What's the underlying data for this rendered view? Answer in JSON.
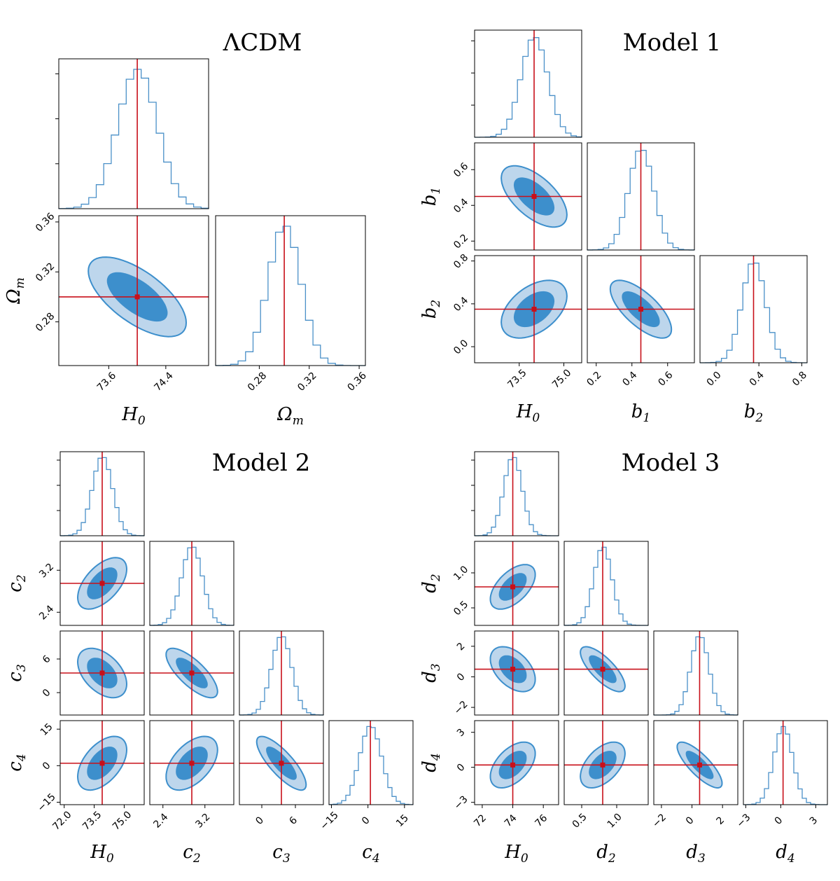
{
  "chart_data": [
    {
      "type": "corner",
      "title": "ΛCDM",
      "params": [
        {
          "label": "H",
          "sub": "0",
          "truth": 74.0,
          "range": [
            72.9,
            75.0
          ],
          "ticks": [
            73.6,
            74.4
          ],
          "tick_labels": [
            "73.6",
            "74.4"
          ],
          "sd": 0.28
        },
        {
          "label": "Ω",
          "sub": "m",
          "truth": 0.3,
          "range": [
            0.245,
            0.365
          ],
          "ticks": [
            0.28,
            0.32,
            0.36
          ],
          "tick_labels": [
            "0.28",
            "0.32",
            "0.36"
          ],
          "sd": 0.013
        }
      ],
      "correlations": [
        [
          1,
          -0.65
        ],
        [
          -0.65,
          1
        ]
      ],
      "contour_color": "#3d8fcc",
      "truth_color": "#c8101a"
    },
    {
      "type": "corner",
      "title": "Model 1",
      "params": [
        {
          "label": "H",
          "sub": "0",
          "truth": 74.0,
          "range": [
            72.0,
            75.6
          ],
          "ticks": [
            73.5,
            75.0
          ],
          "tick_labels": [
            "73.5",
            "75.0"
          ],
          "sd": 0.45
        },
        {
          "label": "b",
          "sub": "1",
          "truth": 0.45,
          "range": [
            0.15,
            0.75
          ],
          "ticks": [
            0.2,
            0.4,
            0.6
          ],
          "tick_labels": [
            "0.2",
            "0.4",
            "0.6"
          ],
          "sd": 0.07
        },
        {
          "label": "b",
          "sub": "2",
          "truth": 0.35,
          "range": [
            -0.15,
            0.85
          ],
          "ticks": [
            0.0,
            0.4,
            0.8
          ],
          "tick_labels": [
            "0.0",
            "0.4",
            "0.8"
          ],
          "sd": 0.11
        }
      ],
      "correlations": [
        [
          1,
          -0.6,
          0.45
        ],
        [
          -0.6,
          1,
          -0.7
        ],
        [
          0.45,
          -0.7,
          1
        ]
      ],
      "contour_color": "#3d8fcc",
      "truth_color": "#c8101a"
    },
    {
      "type": "corner",
      "title": "Model 2",
      "params": [
        {
          "label": "H",
          "sub": "0",
          "truth": 73.9,
          "range": [
            71.8,
            76.0
          ],
          "ticks": [
            72.0,
            73.5,
            75.0
          ],
          "tick_labels": [
            "72.0",
            "73.5",
            "75.0"
          ],
          "sd": 0.5
        },
        {
          "label": "c",
          "sub": "2",
          "truth": 2.95,
          "range": [
            2.15,
            3.75
          ],
          "ticks": [
            2.4,
            3.2
          ],
          "tick_labels": [
            "2.4",
            "3.2"
          ],
          "sd": 0.2
        },
        {
          "label": "c",
          "sub": "3",
          "truth": 3.5,
          "range": [
            -4.0,
            11.0
          ],
          "ticks": [
            0,
            6
          ],
          "tick_labels": [
            "0",
            "6"
          ],
          "sd": 1.8
        },
        {
          "label": "c",
          "sub": "4",
          "truth": 1.0,
          "range": [
            -16.0,
            18.5
          ],
          "ticks": [
            -15,
            0,
            15
          ],
          "tick_labels": [
            "−15",
            "0",
            "15"
          ],
          "sd": 4.5
        }
      ],
      "correlations": [
        [
          1,
          0.55,
          -0.45,
          0.5
        ],
        [
          0.55,
          1,
          -0.75,
          0.5
        ],
        [
          -0.45,
          -0.75,
          1,
          -0.8
        ],
        [
          0.5,
          0.5,
          -0.8,
          1
        ]
      ],
      "contour_color": "#3d8fcc",
      "truth_color": "#c8101a"
    },
    {
      "type": "corner",
      "title": "Model 3",
      "params": [
        {
          "label": "H",
          "sub": "0",
          "truth": 74.0,
          "range": [
            71.5,
            77.0
          ],
          "ticks": [
            72,
            74,
            76
          ],
          "tick_labels": [
            "72",
            "74",
            "76"
          ],
          "sd": 0.6
        },
        {
          "label": "d",
          "sub": "2",
          "truth": 0.8,
          "range": [
            0.25,
            1.45
          ],
          "ticks": [
            0.5,
            1.0
          ],
          "tick_labels": [
            "0.5",
            "1.0"
          ],
          "sd": 0.13
        },
        {
          "label": "d",
          "sub": "3",
          "truth": 0.5,
          "range": [
            -2.5,
            3.0
          ],
          "ticks": [
            -2,
            0,
            2
          ],
          "tick_labels": [
            "−2",
            "0",
            "2"
          ],
          "sd": 0.6
        },
        {
          "label": "d",
          "sub": "4",
          "truth": 0.2,
          "range": [
            -3.2,
            4.0
          ],
          "ticks": [
            -3,
            0,
            3
          ],
          "tick_labels": [
            "−3",
            "0",
            "3"
          ],
          "sd": 0.8
        }
      ],
      "correlations": [
        [
          1,
          0.55,
          -0.45,
          0.5
        ],
        [
          0.55,
          1,
          -0.75,
          0.5
        ],
        [
          -0.45,
          -0.75,
          1,
          -0.8
        ],
        [
          0.5,
          0.5,
          -0.8,
          1
        ]
      ],
      "contour_color": "#3d8fcc",
      "truth_color": "#c8101a"
    }
  ]
}
